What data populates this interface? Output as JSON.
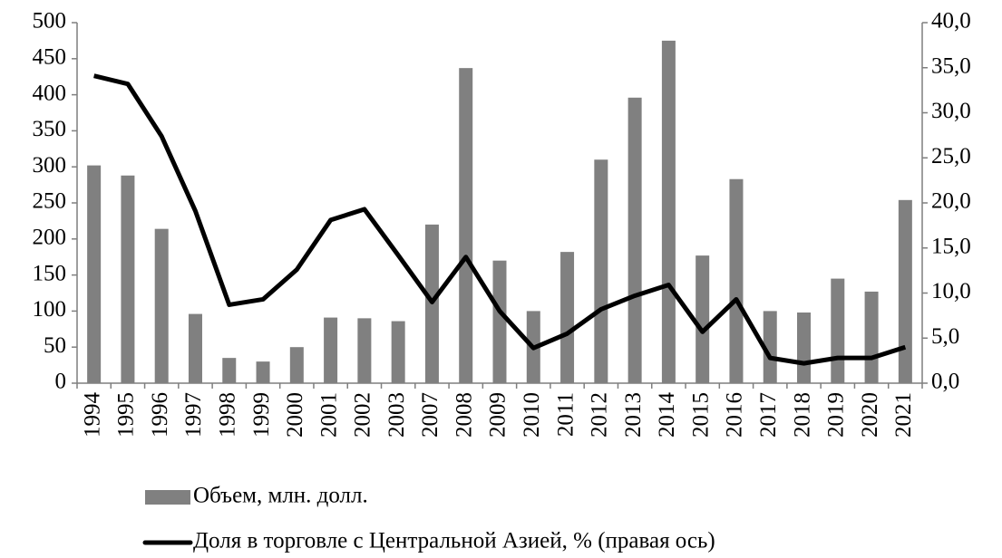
{
  "chart_data": {
    "type": "bar-line",
    "categories": [
      "1994",
      "1995",
      "1996",
      "1997",
      "1998",
      "1999",
      "2000",
      "2001",
      "2002",
      "2003",
      "2007",
      "2008",
      "2009",
      "2010",
      "2011",
      "2012",
      "2013",
      "2014",
      "2015",
      "2016",
      "2017",
      "2018",
      "2019",
      "2020",
      "2021"
    ],
    "series": [
      {
        "name": "Объем, млн. долл.",
        "color": "#808080",
        "type": "bar",
        "axis": "y",
        "values": [
          302,
          288,
          214,
          96,
          35,
          30,
          50,
          91,
          90,
          86,
          220,
          437,
          170,
          100,
          182,
          310,
          396,
          475,
          177,
          283,
          100,
          98,
          145,
          127,
          254
        ]
      },
      {
        "name": "Доля в торговле с Центральной Азией, % (правая ось)",
        "color": "#000000",
        "type": "line",
        "axis": "y2",
        "values": [
          34.1,
          33.2,
          27.4,
          19.1,
          8.7,
          9.3,
          12.6,
          18.1,
          19.3,
          14.2,
          9.0,
          14.0,
          8.0,
          3.9,
          5.5,
          8.2,
          9.7,
          10.9,
          5.7,
          9.3,
          2.8,
          2.2,
          2.8,
          2.8,
          4.0
        ]
      }
    ],
    "ylim": [
      0,
      500
    ],
    "yticks": [
      0,
      50,
      100,
      150,
      200,
      250,
      300,
      350,
      400,
      450,
      500
    ],
    "y2lim": [
      0,
      40
    ],
    "y2ticks": [
      {
        "value": 0,
        "label": "0,0"
      },
      {
        "value": 5,
        "label": "5,0"
      },
      {
        "value": 10,
        "label": "10,0"
      },
      {
        "value": 15,
        "label": "15,0"
      },
      {
        "value": 20,
        "label": "20,0"
      },
      {
        "value": 25,
        "label": "25,0"
      },
      {
        "value": 30,
        "label": "30,0"
      },
      {
        "value": 35,
        "label": "35,0"
      },
      {
        "value": 40,
        "label": "40,0"
      }
    ],
    "grid": false,
    "legend": "bottom"
  }
}
